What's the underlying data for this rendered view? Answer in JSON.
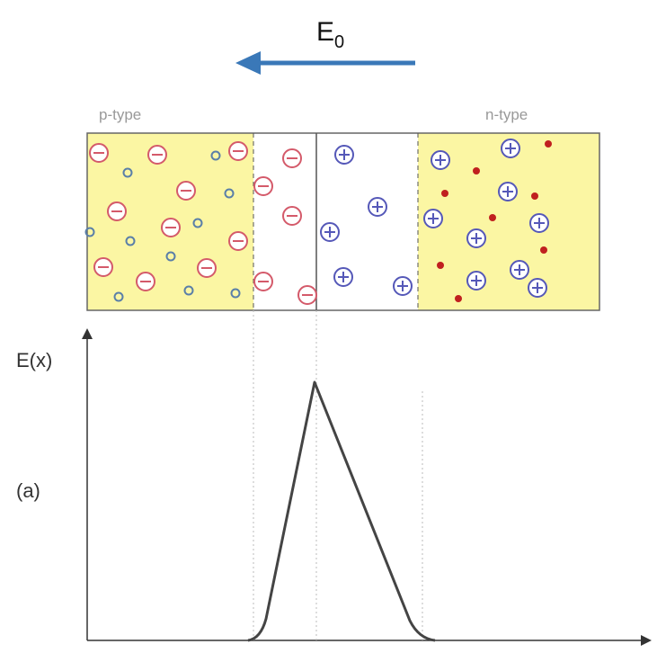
{
  "field": {
    "symbol": "E",
    "subscript": "0"
  },
  "regions": {
    "left": "p-type",
    "right": "n-type"
  },
  "plot": {
    "y_label": "E(x)",
    "panel_label": "(a)"
  }
}
